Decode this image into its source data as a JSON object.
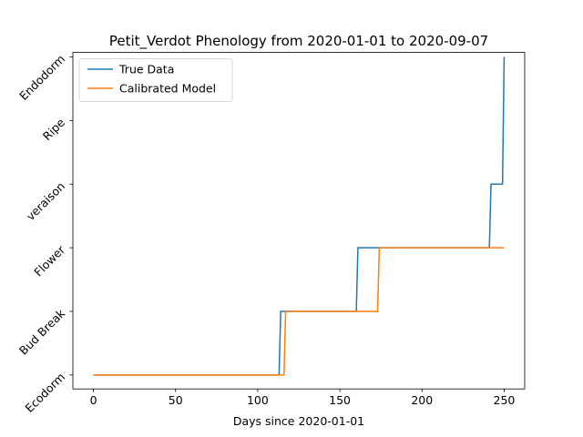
{
  "chart_data": {
    "type": "line",
    "title": "Petit_Verdot Phenology from 2020-01-01 to 2020-09-07",
    "xlabel": "Days since 2020-01-01",
    "ylabel": "",
    "xlim": [
      -12.5,
      262.5
    ],
    "ylim": [
      -0.22,
      5.07
    ],
    "x_ticks": [
      0,
      50,
      100,
      150,
      200,
      250
    ],
    "y_ticks": [
      "Ecodorm",
      "Bud Break",
      "Flower",
      "veraison",
      "Ripe",
      "Endodorm"
    ],
    "grid": false,
    "legend_position": "top-left",
    "series": [
      {
        "name": "True Data",
        "color": "#1f77b4",
        "x": [
          0,
          113,
          114,
          160,
          161,
          241,
          242,
          249,
          250
        ],
        "y": [
          0,
          0,
          1,
          1,
          2,
          2,
          3,
          3,
          5
        ]
      },
      {
        "name": "Calibrated Model",
        "color": "#ff7f0e",
        "x": [
          0,
          116,
          117,
          173,
          174,
          250
        ],
        "y": [
          0,
          0,
          1,
          1,
          2,
          2
        ]
      }
    ]
  }
}
